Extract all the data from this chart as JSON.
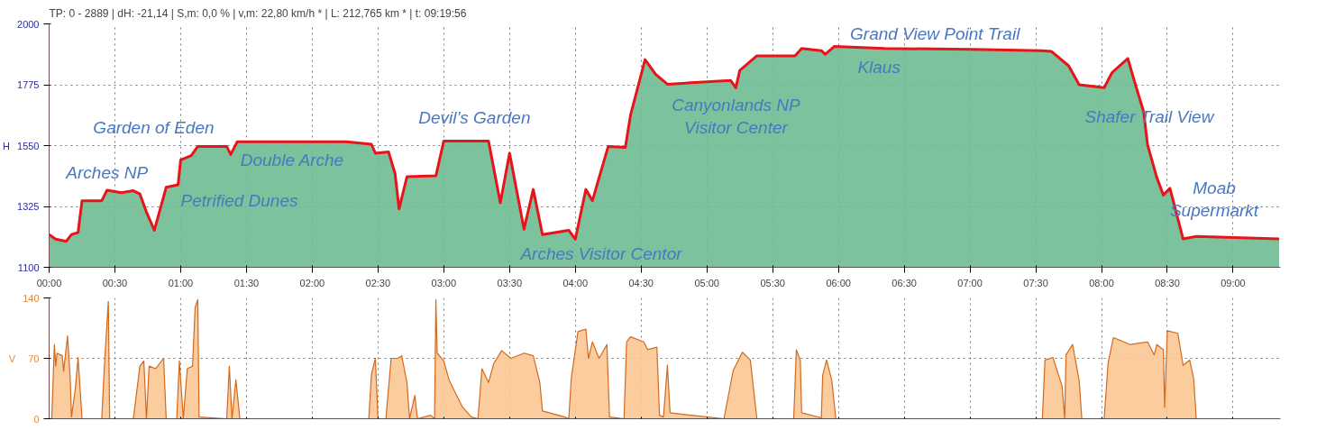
{
  "chart_data": [
    {
      "type": "area",
      "title": "TP: 0 - 2889 | dH: -21,14   | S,m: 0,0 % | v,m: 22,80 km/h * | L: 212,765 km * | t: 09:19:56",
      "ylabel": "H",
      "xlim": [
        0,
        9.36
      ],
      "ylim": [
        1100,
        2000
      ],
      "yticks": [
        1100,
        1325,
        1550,
        1775,
        2000
      ],
      "xticks": [
        {
          "value": 0,
          "label": "00:00"
        },
        {
          "value": 0.5,
          "label": "00:30"
        },
        {
          "value": 1,
          "label": "01:00"
        },
        {
          "value": 1.5,
          "label": "01:30"
        },
        {
          "value": 2,
          "label": "02:00"
        },
        {
          "value": 2.5,
          "label": "02:30"
        },
        {
          "value": 3,
          "label": "03:00"
        },
        {
          "value": 3.5,
          "label": "03:30"
        },
        {
          "value": 4,
          "label": "04:00"
        },
        {
          "value": 4.5,
          "label": "04:30"
        },
        {
          "value": 5,
          "label": "05:00"
        },
        {
          "value": 5.5,
          "label": "05:30"
        },
        {
          "value": 6,
          "label": "06:00"
        },
        {
          "value": 6.5,
          "label": "06:30"
        },
        {
          "value": 7,
          "label": "07:00"
        },
        {
          "value": 7.5,
          "label": "07:30"
        },
        {
          "value": 8,
          "label": "08:00"
        },
        {
          "value": 8.5,
          "label": "08:30"
        },
        {
          "value": 9,
          "label": "09:00"
        }
      ],
      "grid": true,
      "ref_lines": [
        {
          "axis": "x",
          "value": 0,
          "color": "#ff3333",
          "line_style": "dotted"
        }
      ],
      "series": [
        {
          "color": "#6dbb92",
          "x": [
            0,
            0.05,
            0.13,
            0.17,
            0.22,
            0.25,
            0.4,
            0.44,
            0.55,
            0.64,
            0.69,
            0.74,
            0.8,
            0.89,
            0.98,
            1.0,
            1.08,
            1.13,
            1.35,
            1.38,
            1.43,
            2.26,
            2.45,
            2.48,
            2.58,
            2.63,
            2.66,
            2.72,
            2.94,
            3.0,
            3.34,
            3.43,
            3.5,
            3.61,
            3.68,
            3.75,
            3.95,
            4.0,
            4.08,
            4.13,
            4.18,
            4.25,
            4.38,
            4.42,
            4.53,
            4.61,
            4.7,
            5.18,
            5.22,
            5.25,
            5.38,
            5.67,
            5.72,
            5.87,
            5.9,
            5.97,
            6.35,
            7.02,
            7.55,
            7.62,
            7.75,
            7.83,
            8.02,
            8.08,
            8.2,
            8.25,
            8.32,
            8.35,
            8.42,
            8.47,
            8.52,
            8.62,
            8.72,
            9.35
          ],
          "values": [
            1221,
            1204,
            1196,
            1221,
            1229,
            1346,
            1346,
            1385,
            1376,
            1383,
            1371,
            1304,
            1237,
            1396,
            1405,
            1497,
            1513,
            1547,
            1547,
            1517,
            1564,
            1564,
            1555,
            1522,
            1527,
            1446,
            1316,
            1435,
            1438,
            1567,
            1567,
            1338,
            1522,
            1241,
            1388,
            1221,
            1237,
            1204,
            1388,
            1346,
            1430,
            1547,
            1543,
            1664,
            1868,
            1814,
            1777,
            1791,
            1764,
            1828,
            1882,
            1882,
            1909,
            1901,
            1888,
            1917,
            1909,
            1906,
            1901,
            1898,
            1845,
            1775,
            1764,
            1820,
            1872,
            1788,
            1675,
            1553,
            1432,
            1367,
            1392,
            1205,
            1214,
            1205
          ]
        },
        {
          "type": "line",
          "color": "#e8141a",
          "x": [
            0,
            0.05,
            0.13,
            0.17,
            0.22,
            0.25,
            0.4,
            0.44,
            0.55,
            0.64,
            0.69,
            0.74,
            0.8,
            0.89,
            0.98,
            1.0,
            1.08,
            1.13,
            1.35,
            1.38,
            1.43,
            2.26,
            2.45,
            2.48,
            2.58,
            2.63,
            2.66,
            2.72,
            2.94,
            3.0,
            3.34,
            3.43,
            3.5,
            3.61,
            3.68,
            3.75,
            3.95,
            4.0,
            4.08,
            4.13,
            4.18,
            4.25,
            4.38,
            4.42,
            4.53,
            4.61,
            4.7,
            5.18,
            5.22,
            5.25,
            5.38,
            5.67,
            5.72,
            5.87,
            5.9,
            5.97,
            6.35,
            7.02,
            7.55,
            7.62,
            7.75,
            7.83,
            8.02,
            8.08,
            8.2,
            8.25,
            8.32,
            8.35,
            8.42,
            8.47,
            8.52,
            8.62,
            8.72,
            9.35
          ],
          "values": [
            1221,
            1204,
            1196,
            1221,
            1229,
            1346,
            1346,
            1385,
            1376,
            1383,
            1371,
            1304,
            1237,
            1396,
            1405,
            1497,
            1513,
            1547,
            1547,
            1517,
            1564,
            1564,
            1555,
            1522,
            1527,
            1446,
            1316,
            1435,
            1438,
            1567,
            1567,
            1338,
            1522,
            1241,
            1388,
            1221,
            1237,
            1204,
            1388,
            1346,
            1430,
            1547,
            1543,
            1664,
            1868,
            1814,
            1777,
            1791,
            1764,
            1828,
            1882,
            1882,
            1909,
            1901,
            1888,
            1917,
            1909,
            1906,
            1901,
            1898,
            1845,
            1775,
            1764,
            1820,
            1872,
            1788,
            1675,
            1553,
            1432,
            1367,
            1392,
            1205,
            1214,
            1205
          ]
        }
      ],
      "annotations": [
        {
          "text": "Arches NP",
          "x": 0.44,
          "y": 1385
        },
        {
          "text": "Garden of Eden",
          "x": 1.0,
          "y": 1497
        },
        {
          "text": "Petrified Dunes",
          "x": 1.35,
          "y": 1547
        },
        {
          "text": "Double Arche",
          "x": 2.26,
          "y": 1564
        },
        {
          "text": "Devil’s Garden",
          "x": 3.0,
          "y": 1567
        },
        {
          "text": "Arches Visitor Centor",
          "x": 3.95,
          "y": 1237
        },
        {
          "text": "Canyonlands NP\nVisitor Center",
          "x": 5.18,
          "y": 1791
        },
        {
          "text": "Klaus",
          "x": 5.87,
          "y": 1901
        },
        {
          "text": "Grand View Point Trail",
          "x": 6.35,
          "y": 1909
        },
        {
          "text": "Shafer Trail View",
          "x": 8.02,
          "y": 1764
        },
        {
          "text": "Moab\nSupermarkt",
          "x": 9.35,
          "y": 1205
        }
      ]
    },
    {
      "type": "area",
      "ylabel": "V",
      "tick_labels": "y",
      "xlim": [
        0,
        9.36
      ],
      "ylim": [
        0,
        140
      ],
      "yticks": [
        0,
        70,
        140
      ],
      "xticks": [
        0,
        0.5,
        1,
        1.5,
        2,
        2.5,
        3,
        3.5,
        4,
        4.5,
        5,
        5.5,
        6,
        6.5,
        7,
        7.5,
        8,
        8.5,
        9
      ],
      "grid": true,
      "ref_lines": [
        {
          "axis": "x",
          "value": 0,
          "color": "#ff3333",
          "line_style": "dotted"
        }
      ],
      "series": [
        {
          "color": "#fbc893",
          "x": [
            0,
            0.02,
            0.04,
            0.05,
            0.06,
            0.1,
            0.11,
            0.14,
            0.16,
            0.17,
            0.2,
            0.22,
            0.25,
            0.4,
            0.42,
            0.45,
            0.46,
            0.64,
            0.69,
            0.72,
            0.74,
            0.76,
            0.81,
            0.87,
            0.89,
            0.97,
            0.99,
            1.02,
            1.05,
            1.09,
            1.11,
            1.13,
            1.14,
            1.35,
            1.37,
            1.39,
            1.42,
            1.45,
            2.43,
            2.45,
            2.48,
            2.5,
            2.56,
            2.6,
            2.65,
            2.68,
            2.72,
            2.74,
            2.78,
            2.8,
            2.9,
            2.93,
            2.94,
            2.95,
            3.0,
            3.04,
            3.14,
            3.21,
            3.26,
            3.29,
            3.34,
            3.38,
            3.44,
            3.51,
            3.61,
            3.68,
            3.73,
            3.75,
            3.92,
            3.95,
            3.97,
            4.02,
            4.08,
            4.1,
            4.13,
            4.18,
            4.24,
            4.26,
            4.37,
            4.39,
            4.42,
            4.52,
            4.55,
            4.62,
            4.64,
            4.67,
            4.7,
            4.72,
            4.88,
            5.13,
            5.2,
            5.27,
            5.33,
            5.38,
            5.66,
            5.68,
            5.71,
            5.72,
            5.87,
            5.88,
            5.91,
            5.95,
            5.98,
            7.55,
            7.57,
            7.63,
            7.7,
            7.72,
            7.73,
            7.78,
            7.83,
            7.85,
            8.02,
            8.05,
            8.09,
            8.22,
            8.35,
            8.4,
            8.42,
            8.47,
            8.48,
            8.5,
            8.58,
            8.62,
            8.67,
            8.7,
            8.72,
            9.35
          ],
          "values": [
            0,
            0,
            86,
            61,
            76,
            73,
            55,
            96,
            48,
            2,
            36,
            71,
            0,
            0,
            61,
            136,
            0,
            0,
            61,
            67,
            0,
            61,
            58,
            70,
            0,
            0,
            67,
            0,
            58,
            61,
            129,
            138,
            2,
            0,
            61,
            0,
            45,
            0,
            0,
            51,
            70,
            0,
            0,
            70,
            70,
            73,
            42,
            0,
            27,
            0,
            4,
            0,
            138,
            76,
            67,
            45,
            14,
            2,
            0,
            58,
            42,
            64,
            79,
            70,
            76,
            73,
            42,
            9,
            2,
            0,
            48,
            101,
            104,
            70,
            89,
            70,
            86,
            2,
            0,
            89,
            95,
            89,
            80,
            83,
            4,
            2,
            62,
            7,
            4,
            0,
            56,
            77,
            68,
            0,
            0,
            80,
            68,
            7,
            1,
            50,
            68,
            44,
            0,
            0,
            68,
            71,
            38,
            0,
            74,
            86,
            44,
            0,
            0,
            65,
            94,
            86,
            89,
            74,
            86,
            80,
            13,
            102,
            99,
            62,
            68,
            47,
            0,
            0
          ]
        }
      ]
    }
  ]
}
